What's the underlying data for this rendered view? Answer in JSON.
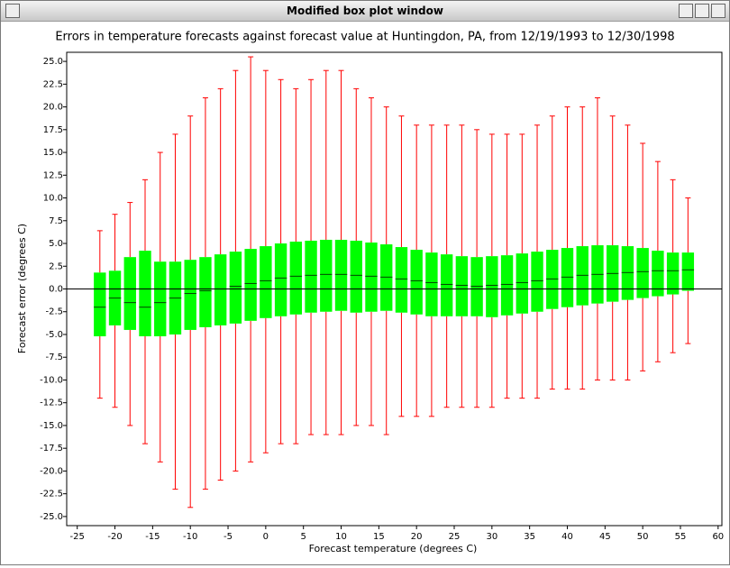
{
  "window_title": "Modified box plot window",
  "chart_data": {
    "type": "box",
    "title": "Errors in temperature forecasts against forecast value at Huntingdon, PA, from 12/19/1993 to 12/30/1998",
    "x_label": "Forecast temperature (degrees C)",
    "y_label": "Forecast error (degrees C)",
    "xlim": [
      -26.4,
      60.5
    ],
    "ylim": [
      -26,
      26
    ],
    "xticks": [
      -25,
      -20,
      -15,
      -10,
      -5,
      0,
      5,
      10,
      15,
      20,
      25,
      30,
      35,
      40,
      45,
      50,
      55,
      60
    ],
    "yticks": [
      {
        "value": -25,
        "label": "-25.0"
      },
      -22.5,
      {
        "value": -20,
        "label": "-20.0"
      },
      -17.5,
      {
        "value": -15,
        "label": "-15.0"
      },
      -12.5,
      {
        "value": -10,
        "label": "-10.0"
      },
      -7.5,
      {
        "value": -5,
        "label": "-5.0"
      },
      -2.5,
      {
        "value": 0,
        "label": "0.0"
      },
      2.5,
      {
        "value": 5,
        "label": "5.0"
      },
      7.5,
      {
        "value": 10,
        "label": "10.0"
      },
      12.5,
      {
        "value": 15,
        "label": "15.0"
      },
      17.5,
      {
        "value": 20,
        "label": "20.0"
      },
      22.5,
      {
        "value": 25,
        "label": "25.0"
      }
    ],
    "whisker_color": "#ff0000",
    "box_color": "#00ff00",
    "median_color": "#004400",
    "x": [
      -22,
      -20,
      -18,
      -16,
      -14,
      -12,
      -10,
      -8,
      -6,
      -4,
      -2,
      0,
      2,
      4,
      6,
      8,
      10,
      12,
      14,
      16,
      18,
      20,
      22,
      24,
      26,
      28,
      30,
      32,
      34,
      36,
      38,
      40,
      42,
      44,
      46,
      48,
      50,
      52,
      54,
      56
    ],
    "low": [
      -12,
      -13,
      -15,
      -17,
      -19,
      -22,
      -24,
      -22,
      -21,
      -20,
      -19,
      -18,
      -17,
      -17,
      -16,
      -16,
      -16,
      -15,
      -15,
      -16,
      -14,
      -14,
      -14,
      -13,
      -13,
      -13,
      -13,
      -12,
      -12,
      -12,
      -11,
      -11,
      -11,
      -10,
      -10,
      -10,
      -9,
      -8,
      -7,
      -6
    ],
    "q1": [
      -5.2,
      -4,
      -4.5,
      -5.2,
      -5.2,
      -5,
      -4.5,
      -4.2,
      -4,
      -3.8,
      -3.5,
      -3.2,
      -3,
      -2.8,
      -2.6,
      -2.5,
      -2.4,
      -2.6,
      -2.5,
      -2.4,
      -2.6,
      -2.8,
      -3,
      -3,
      -3,
      -3,
      -3.1,
      -2.9,
      -2.7,
      -2.5,
      -2.2,
      -2,
      -1.8,
      -1.6,
      -1.4,
      -1.2,
      -1,
      -0.8,
      -0.6,
      -0.2
    ],
    "median": [
      -2,
      -1,
      -1.5,
      -2,
      -1.5,
      -1,
      -0.5,
      -0.2,
      0,
      0.3,
      0.6,
      0.9,
      1.2,
      1.4,
      1.5,
      1.6,
      1.6,
      1.5,
      1.4,
      1.3,
      1.1,
      0.9,
      0.7,
      0.5,
      0.4,
      0.3,
      0.4,
      0.5,
      0.7,
      0.9,
      1.1,
      1.3,
      1.5,
      1.6,
      1.7,
      1.8,
      1.9,
      2,
      2,
      2.1
    ],
    "q3": [
      1.8,
      2,
      3.5,
      4.2,
      3,
      3,
      3.2,
      3.5,
      3.8,
      4.1,
      4.4,
      4.7,
      5,
      5.2,
      5.3,
      5.4,
      5.4,
      5.3,
      5.1,
      4.9,
      4.6,
      4.3,
      4,
      3.8,
      3.6,
      3.5,
      3.6,
      3.7,
      3.9,
      4.1,
      4.3,
      4.5,
      4.7,
      4.8,
      4.8,
      4.7,
      4.5,
      4.2,
      4,
      4
    ],
    "high": [
      6.4,
      8.2,
      9.5,
      12,
      15,
      17,
      19,
      21,
      22,
      24,
      25.5,
      24,
      23,
      22,
      23,
      24,
      24,
      22,
      21,
      20,
      19,
      18,
      18,
      18,
      18,
      17.5,
      17,
      17,
      17,
      18,
      19,
      20,
      20,
      21,
      19,
      18,
      16,
      14,
      12,
      10
    ]
  }
}
